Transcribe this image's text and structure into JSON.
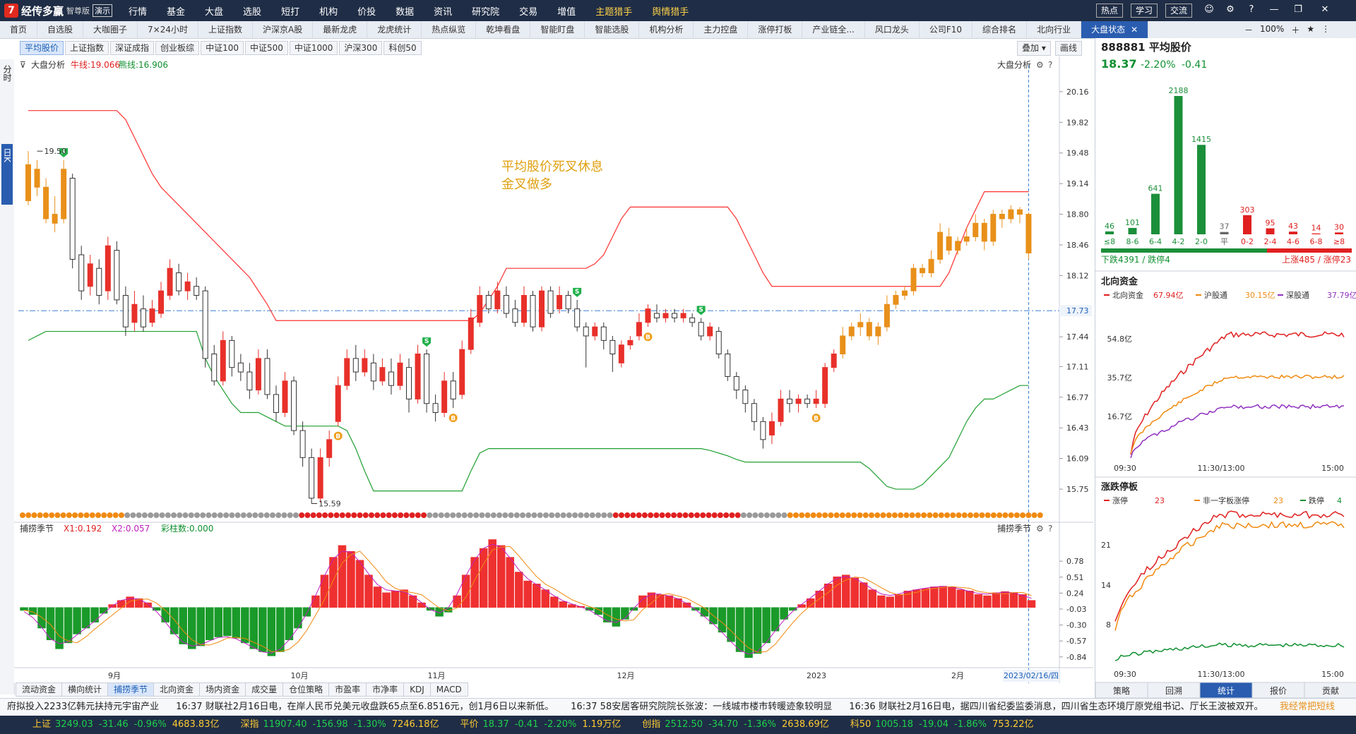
{
  "app": {
    "name": "经传多赢",
    "edition": "智尊版",
    "demo": "演示"
  },
  "menu": [
    "行情",
    "基金",
    "大盘",
    "选股",
    "短打",
    "机构",
    "价投",
    "数据",
    "资讯",
    "研究院",
    "交易",
    "增值"
  ],
  "menu_gold": [
    "主题猎手",
    "舆情猎手"
  ],
  "top_buttons": [
    "热点",
    "学习",
    "交流"
  ],
  "tabs": [
    "首页",
    "自选股",
    "大咖圈子",
    "7×24小时",
    "上证指数",
    "沪深京A股",
    "最新龙虎",
    "龙虎统计",
    "热点纵览",
    "乾坤看盘",
    "智能盯盘",
    "智能选股",
    "机构分析",
    "主力控盘",
    "涨停打板",
    "产业链全...",
    "风口龙头",
    "公司F10",
    "综合排名",
    "北向行业",
    "大盘状态"
  ],
  "zoom": "100%",
  "chips": [
    "平均股价",
    "上证指数",
    "深证成指",
    "创业板综",
    "中证100",
    "中证500",
    "中证1000",
    "沪深300",
    "科创50"
  ],
  "overlay_btn": "叠加",
  "draw_btn": "画线",
  "left_rail": {
    "top": "分时",
    "mid": "日K"
  },
  "main_chart": {
    "label": "大盘分析",
    "ma1": "牛线:19.066",
    "ma2": "熊线:16.906",
    "right_label": "大盘分析",
    "annotation1": "平均股价死叉休息",
    "annotation2": "金叉做多",
    "high_label": "19.50",
    "low_label": "15.59",
    "cursor_price": "17.73",
    "y_ticks": [
      "20.16",
      "19.82",
      "19.48",
      "19.14",
      "18.80",
      "18.46",
      "18.12",
      "17.73",
      "17.44",
      "17.11",
      "16.77",
      "16.43",
      "16.09",
      "15.75"
    ]
  },
  "sub_chart": {
    "label": "捕捞季节",
    "x1": "X1:0.192",
    "x2": "X2:0.057",
    "bars": "彩柱数:0.000",
    "right_label": "捕捞季节",
    "y_ticks": [
      "0.78",
      "0.51",
      "0.24",
      "-0.03",
      "-0.30",
      "-0.57",
      "-0.84"
    ]
  },
  "x_ticks": [
    "9月",
    "10月",
    "11月",
    "12月",
    "2023",
    "2月"
  ],
  "current_date": "2023/02/16/四",
  "bottom_tabs": [
    "流动资金",
    "横向统计",
    "捕捞季节",
    "北向资金",
    "场内资金",
    "成交量",
    "仓位策略",
    "市盈率",
    "市净率",
    "KDJ",
    "MACD"
  ],
  "chart_data": {
    "type": "candlestick",
    "ylim": [
      15.5,
      20.3
    ],
    "candles": [
      [
        18.95,
        19.35,
        19.5,
        18.9
      ],
      [
        19.3,
        19.1,
        19.4,
        19.0
      ],
      [
        19.1,
        18.75,
        19.2,
        18.7
      ],
      [
        18.8,
        18.7,
        19.0,
        18.6
      ],
      [
        18.75,
        19.3,
        19.4,
        18.7
      ],
      [
        19.2,
        18.3,
        19.25,
        18.2
      ],
      [
        18.35,
        17.95,
        18.45,
        17.85
      ],
      [
        18.0,
        18.25,
        18.35,
        17.9
      ],
      [
        18.2,
        17.9,
        18.3,
        17.8
      ],
      [
        17.95,
        18.45,
        18.55,
        17.85
      ],
      [
        18.4,
        17.85,
        18.5,
        17.8
      ],
      [
        17.9,
        17.55,
        18.0,
        17.45
      ],
      [
        17.6,
        17.8,
        17.95,
        17.5
      ],
      [
        17.75,
        17.55,
        17.9,
        17.5
      ],
      [
        17.6,
        17.75,
        17.85,
        17.55
      ],
      [
        17.7,
        17.95,
        18.05,
        17.65
      ],
      [
        17.9,
        18.2,
        18.3,
        17.85
      ],
      [
        18.15,
        17.95,
        18.25,
        17.9
      ],
      [
        17.95,
        18.05,
        18.15,
        17.85
      ],
      [
        18.0,
        17.9,
        18.1,
        17.85
      ],
      [
        17.95,
        17.2,
        18.0,
        17.1
      ],
      [
        17.25,
        16.95,
        17.35,
        16.9
      ],
      [
        16.95,
        17.4,
        17.5,
        16.9
      ],
      [
        17.4,
        17.1,
        17.45,
        17.0
      ],
      [
        17.15,
        17.05,
        17.25,
        16.95
      ],
      [
        17.05,
        16.85,
        17.15,
        16.75
      ],
      [
        16.85,
        17.2,
        17.3,
        16.8
      ],
      [
        17.2,
        16.8,
        17.3,
        16.75
      ],
      [
        16.8,
        16.6,
        16.9,
        16.5
      ],
      [
        16.6,
        16.95,
        17.05,
        16.55
      ],
      [
        16.95,
        16.4,
        17.0,
        16.35
      ],
      [
        16.4,
        16.1,
        16.5,
        16.0
      ],
      [
        16.1,
        15.65,
        16.2,
        15.59
      ],
      [
        15.65,
        16.1,
        16.2,
        15.6
      ],
      [
        16.1,
        16.3,
        16.4,
        16.0
      ],
      [
        16.5,
        16.9,
        17.0,
        16.45
      ],
      [
        16.9,
        17.2,
        17.3,
        16.85
      ],
      [
        17.2,
        17.05,
        17.35,
        16.95
      ],
      [
        17.05,
        17.2,
        17.3,
        17.0
      ],
      [
        17.15,
        16.95,
        17.25,
        16.85
      ],
      [
        16.95,
        17.1,
        17.2,
        16.9
      ],
      [
        17.05,
        16.9,
        17.2,
        16.8
      ],
      [
        16.9,
        17.15,
        17.25,
        16.85
      ],
      [
        17.1,
        16.75,
        17.2,
        16.6
      ],
      [
        16.75,
        17.25,
        17.35,
        16.7
      ],
      [
        17.25,
        16.7,
        17.3,
        16.6
      ],
      [
        16.7,
        16.6,
        16.8,
        16.5
      ],
      [
        16.6,
        16.95,
        17.05,
        16.55
      ],
      [
        16.95,
        16.75,
        17.05,
        16.65
      ],
      [
        16.8,
        17.3,
        17.4,
        16.75
      ],
      [
        17.3,
        17.65,
        17.75,
        17.25
      ],
      [
        17.6,
        17.9,
        18.0,
        17.55
      ],
      [
        17.9,
        17.75,
        17.95,
        17.7
      ],
      [
        17.75,
        17.95,
        18.05,
        17.7
      ],
      [
        17.9,
        17.7,
        18.0,
        17.65
      ],
      [
        17.75,
        17.6,
        17.85,
        17.55
      ],
      [
        17.6,
        17.9,
        18.0,
        17.55
      ],
      [
        17.9,
        17.55,
        17.95,
        17.5
      ],
      [
        17.55,
        17.95,
        18.0,
        17.5
      ],
      [
        17.95,
        17.7,
        18.0,
        17.65
      ],
      [
        17.75,
        17.9,
        18.0,
        17.7
      ],
      [
        17.9,
        17.75,
        17.95,
        17.7
      ],
      [
        17.75,
        17.55,
        17.85,
        17.5
      ],
      [
        17.55,
        17.45,
        17.6,
        17.1
      ],
      [
        17.45,
        17.55,
        17.6,
        17.4
      ],
      [
        17.55,
        17.4,
        17.6,
        17.3
      ],
      [
        17.4,
        17.25,
        17.45,
        17.05
      ],
      [
        17.15,
        17.35,
        17.4,
        17.1
      ],
      [
        17.35,
        17.4,
        17.45,
        17.3
      ],
      [
        17.45,
        17.6,
        17.7,
        17.4
      ],
      [
        17.6,
        17.75,
        17.8,
        17.55
      ],
      [
        17.7,
        17.65,
        17.8,
        17.6
      ],
      [
        17.65,
        17.7,
        17.75,
        17.6
      ],
      [
        17.7,
        17.65,
        17.75,
        17.6
      ],
      [
        17.65,
        17.7,
        17.75,
        17.6
      ],
      [
        17.65,
        17.6,
        17.7,
        17.55
      ],
      [
        17.6,
        17.45,
        17.65,
        17.4
      ],
      [
        17.45,
        17.55,
        17.6,
        17.4
      ],
      [
        17.5,
        17.25,
        17.55,
        17.2
      ],
      [
        17.25,
        17.0,
        17.3,
        16.95
      ],
      [
        17.0,
        16.85,
        17.05,
        16.75
      ],
      [
        16.85,
        16.7,
        16.9,
        16.6
      ],
      [
        16.7,
        16.5,
        16.75,
        16.4
      ],
      [
        16.5,
        16.3,
        16.55,
        16.2
      ],
      [
        16.35,
        16.5,
        16.6,
        16.25
      ],
      [
        16.5,
        16.75,
        16.85,
        16.45
      ],
      [
        16.75,
        16.7,
        16.85,
        16.6
      ],
      [
        16.7,
        16.75,
        16.8,
        16.6
      ],
      [
        16.75,
        16.7,
        16.8,
        16.65
      ],
      [
        16.7,
        16.75,
        16.85,
        16.65
      ],
      [
        16.7,
        17.1,
        17.15,
        16.65
      ],
      [
        17.1,
        17.25,
        17.3,
        17.05
      ],
      [
        17.25,
        17.45,
        17.55,
        17.2
      ],
      [
        17.45,
        17.55,
        17.6,
        17.4
      ],
      [
        17.55,
        17.6,
        17.7,
        17.45
      ],
      [
        17.6,
        17.45,
        17.65,
        17.4
      ],
      [
        17.45,
        17.55,
        17.6,
        17.35
      ],
      [
        17.55,
        17.8,
        17.9,
        17.5
      ],
      [
        17.8,
        17.9,
        17.95,
        17.75
      ],
      [
        17.9,
        17.95,
        18.0,
        17.85
      ],
      [
        17.95,
        18.2,
        18.25,
        17.9
      ],
      [
        18.2,
        18.15,
        18.25,
        18.1
      ],
      [
        18.15,
        18.3,
        18.4,
        18.1
      ],
      [
        18.3,
        18.6,
        18.7,
        18.25
      ],
      [
        18.55,
        18.4,
        18.65,
        18.35
      ],
      [
        18.4,
        18.5,
        18.55,
        18.35
      ],
      [
        18.5,
        18.55,
        18.65,
        18.45
      ],
      [
        18.55,
        18.7,
        18.8,
        18.5
      ],
      [
        18.7,
        18.5,
        18.75,
        18.4
      ],
      [
        18.5,
        18.8,
        18.85,
        18.45
      ],
      [
        18.8,
        18.75,
        18.85,
        18.65
      ],
      [
        18.75,
        18.85,
        18.9,
        18.7
      ],
      [
        18.85,
        18.8,
        18.88,
        18.7
      ],
      [
        18.8,
        18.37,
        18.82,
        18.3
      ]
    ],
    "bull_line": [
      19.95,
      19.95,
      19.95,
      19.95,
      19.95,
      19.95,
      19.95,
      19.95,
      19.95,
      19.95,
      19.95,
      19.85,
      19.65,
      19.45,
      19.25,
      19.1,
      19.0,
      18.9,
      18.8,
      18.7,
      18.6,
      18.5,
      18.4,
      18.3,
      18.2,
      18.1,
      17.95,
      17.8,
      17.62,
      17.62,
      17.62,
      17.62,
      17.62,
      17.62,
      17.62,
      17.62,
      17.62,
      17.62,
      17.62,
      17.62,
      17.62,
      17.62,
      17.62,
      17.62,
      17.62,
      17.62,
      17.62,
      17.62,
      17.62,
      17.62,
      17.62,
      17.7,
      17.85,
      18.0,
      18.2,
      18.2,
      18.2,
      18.2,
      18.2,
      18.2,
      18.2,
      18.2,
      18.2,
      18.2,
      18.25,
      18.35,
      18.55,
      18.75,
      18.88,
      18.88,
      18.88,
      18.88,
      18.88,
      18.88,
      18.88,
      18.88,
      18.88,
      18.88,
      18.88,
      18.88,
      18.75,
      18.55,
      18.35,
      18.15,
      18.0,
      18.0,
      18.0,
      18.0,
      18.0,
      18.0,
      18.0,
      18.0,
      18.0,
      18.0,
      18.0,
      18.0,
      18.0,
      18.0,
      18.0,
      18.0,
      18.0,
      18.0,
      18.0,
      18.0,
      18.15,
      18.4,
      18.65,
      18.85,
      19.05,
      19.05,
      19.05,
      19.05,
      19.05,
      19.05
    ],
    "bear_line": [
      17.4,
      17.45,
      17.5,
      17.5,
      17.5,
      17.5,
      17.5,
      17.5,
      17.5,
      17.5,
      17.5,
      17.5,
      17.5,
      17.5,
      17.5,
      17.5,
      17.5,
      17.5,
      17.5,
      17.5,
      17.2,
      17.0,
      16.85,
      16.7,
      16.6,
      16.6,
      16.6,
      16.55,
      16.5,
      16.45,
      16.45,
      16.45,
      16.45,
      16.45,
      16.45,
      16.45,
      16.4,
      16.2,
      15.95,
      15.73,
      15.73,
      15.73,
      15.73,
      15.73,
      15.73,
      15.73,
      15.73,
      15.73,
      15.73,
      15.73,
      15.95,
      16.15,
      16.2,
      16.2,
      16.2,
      16.2,
      16.2,
      16.2,
      16.2,
      16.2,
      16.2,
      16.2,
      16.2,
      16.2,
      16.2,
      16.2,
      16.2,
      16.2,
      16.2,
      16.2,
      16.2,
      16.2,
      16.2,
      16.2,
      16.2,
      16.2,
      16.2,
      16.18,
      16.15,
      16.12,
      16.08,
      16.05,
      16.05,
      16.05,
      16.05,
      16.05,
      16.05,
      16.05,
      16.05,
      16.05,
      16.05,
      16.05,
      16.05,
      16.05,
      16.05,
      15.98,
      15.88,
      15.78,
      15.75,
      15.75,
      15.75,
      15.8,
      15.9,
      16.0,
      16.1,
      16.3,
      16.5,
      16.65,
      16.75,
      16.75,
      16.8,
      16.85,
      16.9,
      16.9
    ],
    "dot_colors": "ooooooooooooooooooggggggggggggggggggggggggggggggrrrrrrrrrrrrrrrrrrrrrrggggggggggggggggggggggggggggggggrrrrrrrrrrrrrrrrrrrrrrggggggggoooooooooooooooooooooooooooooooooooooooooooo",
    "macd_bars": [
      -0.05,
      -0.12,
      -0.35,
      -0.55,
      -0.7,
      -0.6,
      -0.45,
      -0.35,
      -0.25,
      -0.1,
      0.05,
      0.12,
      0.18,
      0.15,
      0.08,
      -0.05,
      -0.25,
      -0.45,
      -0.62,
      -0.7,
      -0.65,
      -0.55,
      -0.5,
      -0.48,
      -0.52,
      -0.6,
      -0.7,
      -0.75,
      -0.82,
      -0.75,
      -0.55,
      -0.35,
      -0.15,
      0.2,
      0.55,
      0.85,
      1.05,
      0.95,
      0.8,
      0.55,
      0.35,
      0.25,
      0.28,
      0.3,
      0.2,
      0.08,
      -0.05,
      -0.15,
      -0.08,
      0.2,
      0.55,
      0.85,
      1.0,
      1.15,
      1.05,
      0.85,
      0.6,
      0.45,
      0.4,
      0.3,
      0.18,
      0.1,
      0.05,
      0.02,
      -0.05,
      -0.12,
      -0.25,
      -0.32,
      -0.2,
      -0.05,
      0.2,
      0.25,
      0.22,
      0.2,
      0.15,
      0.08,
      -0.05,
      -0.15,
      -0.28,
      -0.42,
      -0.58,
      -0.75,
      -0.85,
      -0.78,
      -0.6,
      -0.4,
      -0.2,
      -0.05,
      0.05,
      0.15,
      0.28,
      0.4,
      0.52,
      0.55,
      0.5,
      0.42,
      0.3,
      0.2,
      0.18,
      0.22,
      0.28,
      0.3,
      0.32,
      0.35,
      0.36,
      0.35,
      0.3,
      0.28,
      0.22,
      0.2,
      0.25,
      0.27,
      0.25,
      0.22,
      0.12
    ]
  },
  "right": {
    "title": "888881 平均股价",
    "price": "18.37",
    "chg": "-2.20%",
    "chg_abs": "-0.41",
    "dist": {
      "values": [
        46,
        101,
        641,
        2188,
        1415,
        37,
        303,
        95,
        43,
        14,
        30
      ],
      "labels": [
        "≤8",
        "8-6",
        "6-4",
        "4-2",
        "2-0",
        "平",
        "0-2",
        "2-4",
        "4-6",
        "6-8",
        "≥8"
      ],
      "colors": [
        "#1c8f3a",
        "#1c8f3a",
        "#1c8f3a",
        "#1c8f3a",
        "#1c8f3a",
        "#666666",
        "#e02020",
        "#e02020",
        "#e02020",
        "#e02020",
        "#e02020"
      ]
    },
    "down_text": "下跌4391 / 跌停4",
    "up_text": "上涨485 / 涨停23",
    "north": {
      "title": "北向资金",
      "l1": "北向资金",
      "v1": "67.94亿",
      "l2": "沪股通",
      "v2": "30.15亿",
      "l3": "深股通",
      "v3": "37.79亿",
      "y": [
        "54.8亿",
        "35.7亿",
        "16.7亿"
      ],
      "x": [
        "09:30",
        "11:30/13:00",
        "15:00"
      ]
    },
    "limit": {
      "title": "涨跌停板",
      "l1": "涨停",
      "v1": "23",
      "l2": "非一字板涨停",
      "v2": "23",
      "l3": "跌停",
      "v3": "4",
      "y": [
        "21",
        "14",
        "8"
      ],
      "x": [
        "09:30",
        "11:30/13:00",
        "15:00"
      ]
    },
    "tabs": [
      "策略",
      "回溯",
      "统计",
      "报价",
      "贡献"
    ]
  },
  "news": [
    {
      "text": "府拟投入2233亿韩元扶持元宇宙产业"
    },
    {
      "text": "16:37 财联社2月16日电，在岸人民币兑美元收盘跌65点至6.8516元，创1月6日以来新低。"
    },
    {
      "text": "16:37 58安居客研究院院长张波：一线城市楼市转暖迹象较明显"
    },
    {
      "text": "16:36 财联社2月16日电，据四川省纪委监委消息，四川省生态环境厅原党组书记、厅长王波被双开。"
    }
  ],
  "news_right": "我经常把短线",
  "status": [
    {
      "name": "上证",
      "val": "3249.03",
      "chg": "-31.46",
      "pct": "-0.96%",
      "amt": "4683.83亿"
    },
    {
      "name": "深指",
      "val": "11907.40",
      "chg": "-156.98",
      "pct": "-1.30%",
      "amt": "7246.18亿"
    },
    {
      "name": "平价",
      "val": "18.37",
      "chg": "-0.41",
      "pct": "-2.20%",
      "amt": "1.19万亿"
    },
    {
      "name": "创指",
      "val": "2512.50",
      "chg": "-34.70",
      "pct": "-1.36%",
      "amt": "2638.69亿"
    },
    {
      "name": "科50",
      "val": "1005.18",
      "chg": "-19.04",
      "pct": "-1.86%",
      "amt": "753.22亿"
    }
  ],
  "colors": {
    "up": "#e8302a",
    "down": "#109a2e",
    "orange": "#e8901a",
    "bull": "#ff3030",
    "bear": "#20a030",
    "accent": "#2a5db0"
  }
}
